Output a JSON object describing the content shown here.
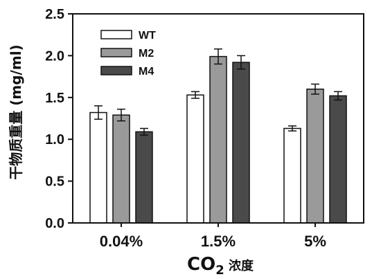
{
  "chart_data": {
    "type": "bar",
    "ylabel": "干物质重量 (mg/ml)",
    "xlabel_main": "CO",
    "xlabel_sub": "2",
    "xlabel_suffix": " 浓度",
    "ylim": [
      0,
      2.5
    ],
    "yticks": [
      "0.0",
      "0.5",
      "1.0",
      "1.5",
      "2.0",
      "2.5"
    ],
    "categories": [
      "0.04%",
      "1.5%",
      "5%"
    ],
    "series": [
      {
        "name": "WT",
        "color": "#ffffff",
        "values": [
          1.32,
          1.53,
          1.13
        ],
        "errors": [
          0.08,
          0.04,
          0.03
        ]
      },
      {
        "name": "M2",
        "color": "#9a9a9a",
        "values": [
          1.29,
          1.99,
          1.6
        ],
        "errors": [
          0.07,
          0.09,
          0.06
        ]
      },
      {
        "name": "M4",
        "color": "#4a4a4a",
        "values": [
          1.09,
          1.92,
          1.52
        ],
        "errors": [
          0.04,
          0.08,
          0.05
        ]
      }
    ],
    "legend_position": "top-left"
  }
}
